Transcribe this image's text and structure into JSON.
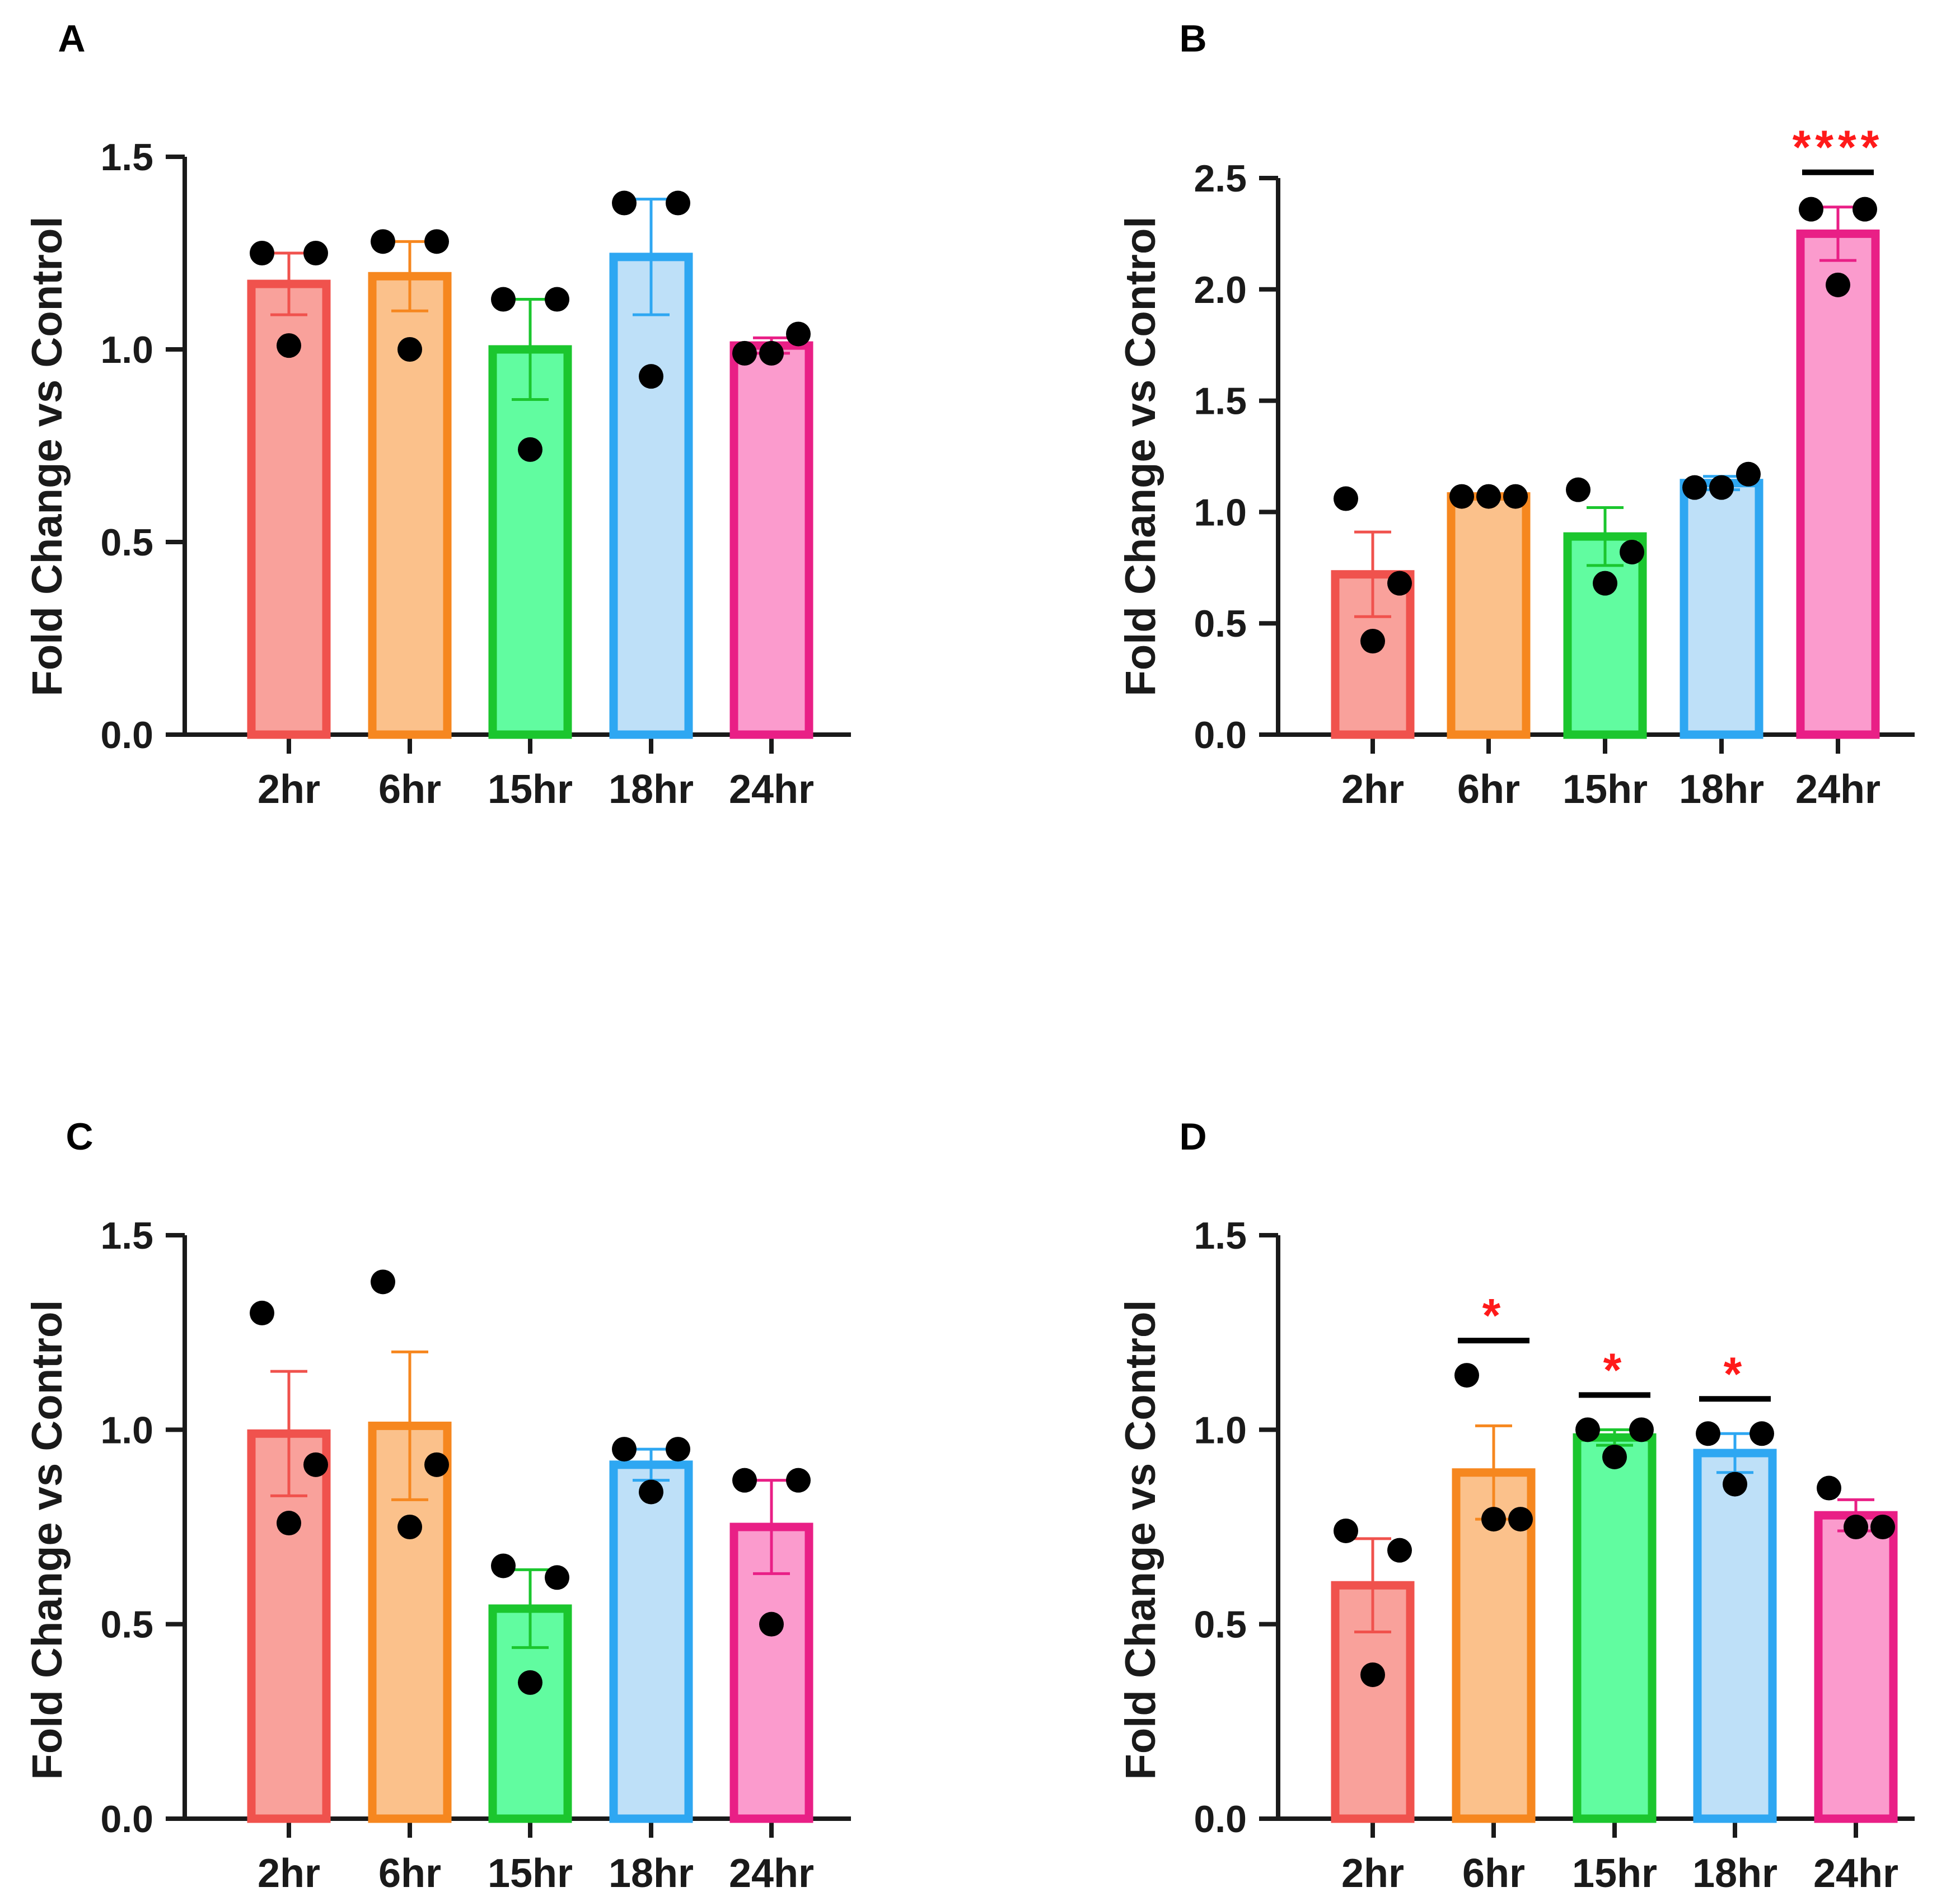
{
  "colors": {
    "2hr": {
      "fill": "#f9a19b",
      "stroke": "#f0524d"
    },
    "6hr": {
      "fill": "#fbc18b",
      "stroke": "#f6871f"
    },
    "15hr": {
      "fill": "#61fca0",
      "stroke": "#1bc62e"
    },
    "18hr": {
      "fill": "#bee0f8",
      "stroke": "#2ea7f2"
    },
    "24hr": {
      "fill": "#fb9bcd",
      "stroke": "#e91f86"
    },
    "axis": "#1a1a1a",
    "point": "#000000",
    "significance": "#ff1a1a"
  },
  "chart_data": [
    {
      "panel_label": "A",
      "type": "bar",
      "ylabel": "Fold Change vs Control",
      "ylim": [
        0,
        1.5
      ],
      "yticks": [
        "0.0",
        "0.5",
        "1.0",
        "1.5"
      ],
      "categories": [
        "2hr",
        "6hr",
        "15hr",
        "18hr",
        "24hr"
      ],
      "values": [
        1.17,
        1.19,
        1.0,
        1.24,
        1.01
      ],
      "sem": [
        0.08,
        0.09,
        0.13,
        0.15,
        0.02
      ],
      "points": [
        [
          1.25,
          1.25,
          1.01
        ],
        [
          1.28,
          1.28,
          1.0
        ],
        [
          1.13,
          1.13,
          0.74
        ],
        [
          1.38,
          1.38,
          0.93
        ],
        [
          0.99,
          1.04,
          0.99
        ]
      ],
      "significance": [
        "",
        "",
        "",
        "",
        ""
      ]
    },
    {
      "panel_label": "B",
      "type": "bar",
      "ylabel": "Fold Change vs Control",
      "ylim": [
        0,
        2.5
      ],
      "yticks": [
        "0.0",
        "0.5",
        "1.0",
        "1.5",
        "2.0",
        "2.5"
      ],
      "categories": [
        "2hr",
        "6hr",
        "15hr",
        "18hr",
        "24hr"
      ],
      "values": [
        0.72,
        1.07,
        0.89,
        1.13,
        2.25
      ],
      "sem": [
        0.19,
        0.01,
        0.13,
        0.03,
        0.12
      ],
      "points": [
        [
          1.06,
          0.68,
          0.42
        ],
        [
          1.07,
          1.07,
          1.07
        ],
        [
          1.1,
          0.82,
          0.68
        ],
        [
          1.11,
          1.17,
          1.11
        ],
        [
          2.36,
          2.36,
          2.02
        ]
      ],
      "significance": [
        "",
        "",
        "",
        "",
        "****"
      ]
    },
    {
      "panel_label": "C",
      "type": "bar",
      "ylabel": "Fold Change vs Control",
      "ylim": [
        0,
        1.5
      ],
      "yticks": [
        "0.0",
        "0.5",
        "1.0",
        "1.5"
      ],
      "categories": [
        "2hr",
        "6hr",
        "15hr",
        "18hr",
        "24hr"
      ],
      "values": [
        0.99,
        1.01,
        0.54,
        0.91,
        0.75
      ],
      "sem": [
        0.16,
        0.19,
        0.1,
        0.04,
        0.12
      ],
      "points": [
        [
          1.3,
          0.91,
          0.76
        ],
        [
          1.38,
          0.91,
          0.75
        ],
        [
          0.65,
          0.62,
          0.35
        ],
        [
          0.95,
          0.95,
          0.84
        ],
        [
          0.87,
          0.87,
          0.5
        ]
      ],
      "significance": [
        "",
        "",
        "",
        "",
        ""
      ]
    },
    {
      "panel_label": "D",
      "type": "bar",
      "ylabel": "Fold Change vs Control",
      "ylim": [
        0,
        1.5
      ],
      "yticks": [
        "0.0",
        "0.5",
        "1.0",
        "1.5"
      ],
      "categories": [
        "2hr",
        "6hr",
        "15hr",
        "18hr",
        "24hr"
      ],
      "values": [
        0.6,
        0.89,
        0.98,
        0.94,
        0.78
      ],
      "sem": [
        0.12,
        0.12,
        0.02,
        0.05,
        0.04
      ],
      "points": [
        [
          0.74,
          0.69,
          0.37
        ],
        [
          1.14,
          0.77,
          0.77
        ],
        [
          1.0,
          1.0,
          0.93
        ],
        [
          0.99,
          0.99,
          0.86
        ],
        [
          0.85,
          0.75,
          0.75
        ]
      ],
      "significance": [
        "",
        "*",
        "*",
        "*",
        ""
      ]
    }
  ]
}
